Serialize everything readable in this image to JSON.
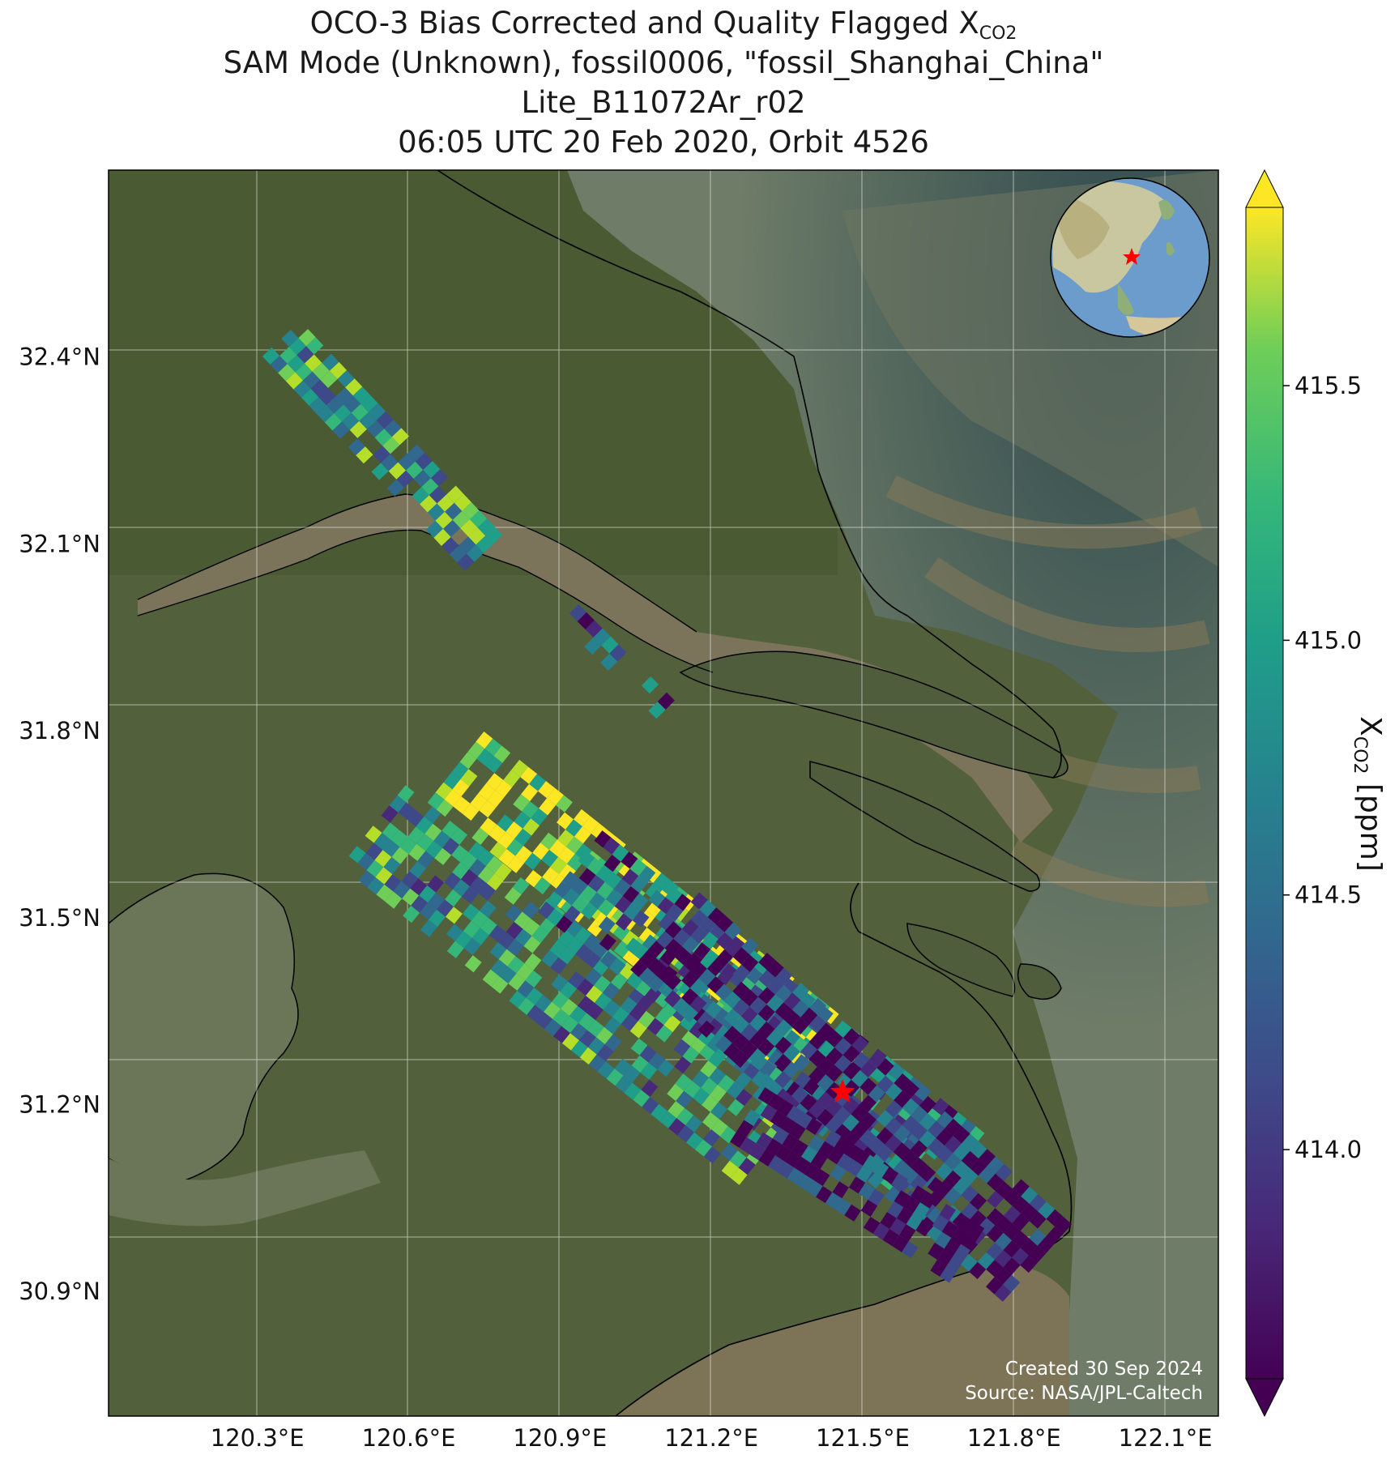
{
  "title": {
    "line1_prefix": "OCO-3 Bias Corrected and Quality Flagged X",
    "line1_sub": "CO2",
    "line2": "SAM Mode (Unknown), fossil0006, \"fossil_Shanghai_China\"",
    "line3": "Lite_B11072Ar_r02",
    "line4": "06:05 UTC 20 Feb 2020, Orbit 4526"
  },
  "axes": {
    "lon_ticks": [
      {
        "value": 120.3,
        "label": "120.3°E"
      },
      {
        "value": 120.6,
        "label": "120.6°E"
      },
      {
        "value": 120.9,
        "label": "120.9°E"
      },
      {
        "value": 121.2,
        "label": "121.2°E"
      },
      {
        "value": 121.5,
        "label": "121.5°E"
      },
      {
        "value": 121.8,
        "label": "121.8°E"
      },
      {
        "value": 122.1,
        "label": "122.1°E"
      }
    ],
    "lat_ticks": [
      {
        "value": 32.4,
        "label": "32.4°N"
      },
      {
        "value": 32.1,
        "label": "32.1°N"
      },
      {
        "value": 31.8,
        "label": "31.8°N"
      },
      {
        "value": 31.5,
        "label": "31.5°N"
      },
      {
        "value": 31.2,
        "label": "31.2°N"
      },
      {
        "value": 30.9,
        "label": "30.9°N"
      }
    ],
    "lon_range": [
      120.005,
      122.205
    ],
    "lat_range": [
      30.7,
      32.7
    ]
  },
  "target": {
    "name": "fossil_Shanghai_China",
    "lon": 121.46,
    "lat": 31.22,
    "marker": "red-star"
  },
  "colorbar": {
    "label_prefix": "X",
    "label_sub": "CO2",
    "label_suffix": " [ppm]",
    "ticks": [
      {
        "value": 414.0,
        "label": "414.0"
      },
      {
        "value": 414.5,
        "label": "414.5"
      },
      {
        "value": 415.0,
        "label": "415.0"
      },
      {
        "value": 415.5,
        "label": "415.5"
      }
    ],
    "range": [
      413.55,
      415.85
    ],
    "colormap": "viridis",
    "extend": "both"
  },
  "credits": {
    "created": "Created 30 Sep 2024",
    "source": "Source: NASA/JPL-Caltech"
  },
  "colors": {
    "land": "#4e5a38",
    "water": "#7d7458",
    "sea": "#5f7c72",
    "coastline": "#000000",
    "grid": "#ffffff",
    "star": "#ff0000"
  },
  "inset_globe": {
    "icon": "globe-icon",
    "center": "East Asia",
    "marker": "red-star"
  }
}
